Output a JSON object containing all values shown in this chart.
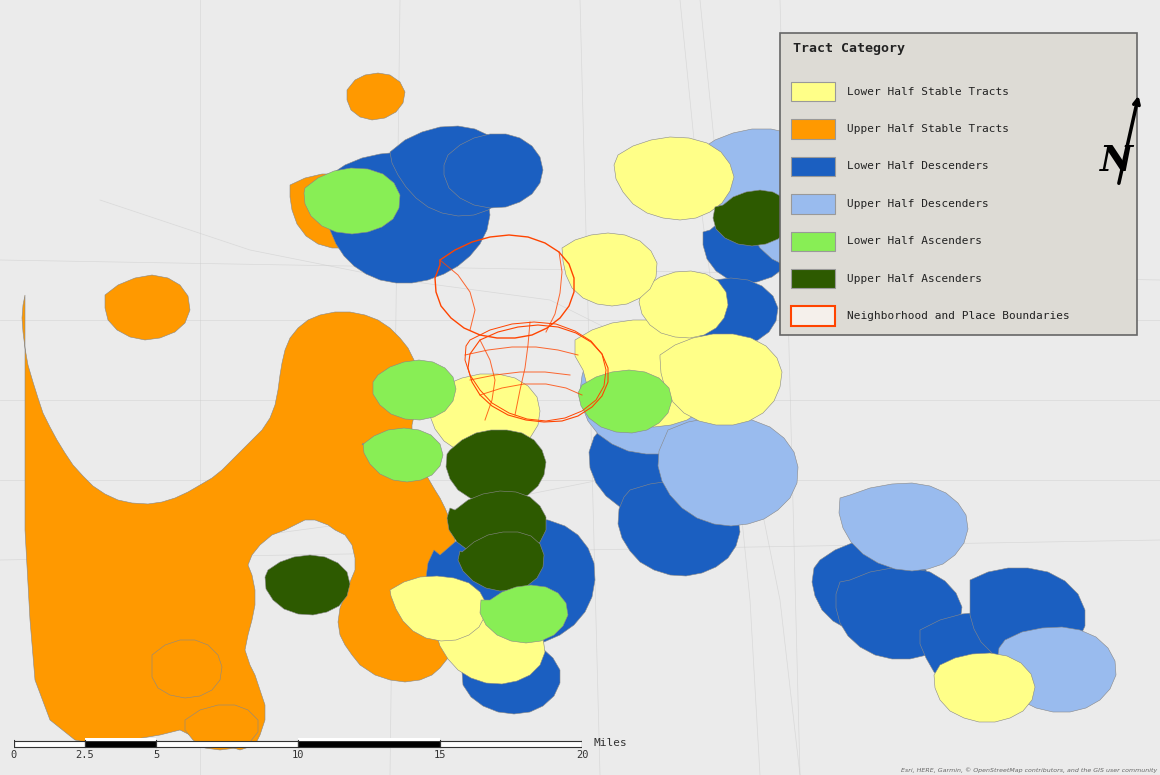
{
  "legend_title": "Tract Category",
  "legend_items": [
    {
      "label": "Lower Half Stable Tracts",
      "facecolor": "#FFFF88",
      "edgecolor": "#999999",
      "lw": 0.8
    },
    {
      "label": "Upper Half Stable Tracts",
      "facecolor": "#FF9900",
      "edgecolor": "#999999",
      "lw": 0.8
    },
    {
      "label": "Lower Half Descenders",
      "facecolor": "#1B5FC1",
      "edgecolor": "#999999",
      "lw": 0.8
    },
    {
      "label": "Upper Half Descenders",
      "facecolor": "#99BBEE",
      "edgecolor": "#999999",
      "lw": 0.8
    },
    {
      "label": "Lower Half Ascenders",
      "facecolor": "#88EE55",
      "edgecolor": "#999999",
      "lw": 0.8
    },
    {
      "label": "Upper Half Ascenders",
      "facecolor": "#2D5A00",
      "edgecolor": "#999999",
      "lw": 0.8
    },
    {
      "label": "Neighborhood and Place Boundaries",
      "facecolor": "#F5F0EB",
      "edgecolor": "#FF4400",
      "lw": 1.5
    }
  ],
  "bg_color": "#E8E8E8",
  "map_bg": "#F0EEEC",
  "road_color": "#DDDDDD",
  "attribution": "Esri, HERE, Garmin, © OpenStreetMap contributors, and the GIS user community",
  "scale_ticks": [
    0,
    2.5,
    5,
    10,
    15,
    20
  ],
  "scale_unit": "Miles",
  "figsize": [
    11.6,
    7.75
  ],
  "dpi": 100,
  "col_yellow": "#FFFF88",
  "col_orange": "#FF9900",
  "col_blue": "#1B5FC1",
  "col_ltblue": "#99BBEE",
  "col_ltgreen": "#88EE55",
  "col_dkgreen": "#2D5A00",
  "col_red": "#FF4400",
  "col_gray_edge": "#888888"
}
